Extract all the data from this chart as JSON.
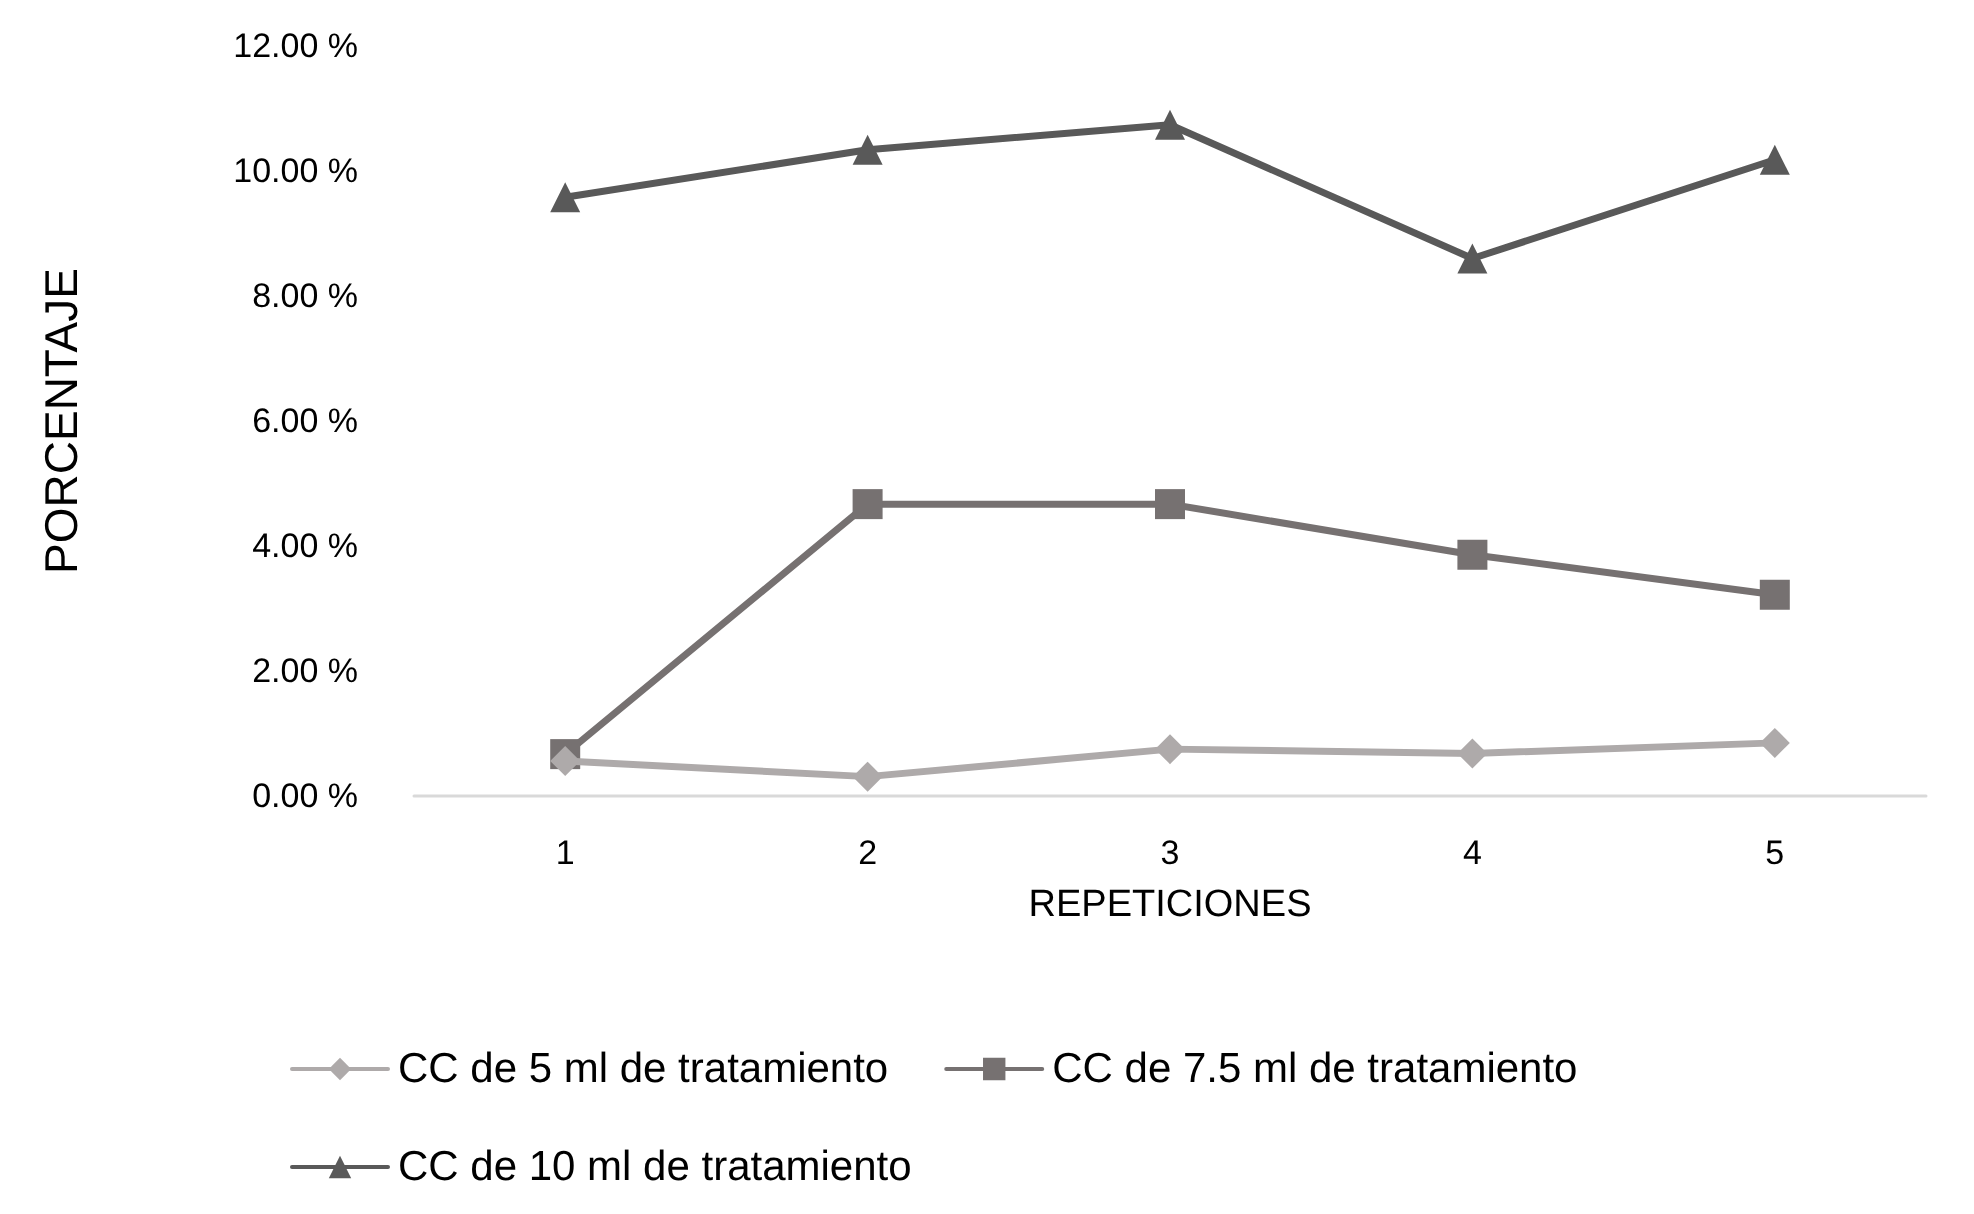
{
  "chart_data": {
    "type": "line",
    "xlabel": "REPETICIONES",
    "ylabel": "PORCENTAJE",
    "categories": [
      "1",
      "2",
      "3",
      "4",
      "5"
    ],
    "series": [
      {
        "name": "CC de 5 ml de tratamiento",
        "color": "#aeaaaa",
        "marker": "diamond",
        "values": [
          0.56,
          0.31,
          0.75,
          0.68,
          0.85
        ]
      },
      {
        "name": "CC de 7.5 ml de tratamiento",
        "color": "#767171",
        "marker": "square",
        "values": [
          0.67,
          4.67,
          4.67,
          3.86,
          3.22
        ]
      },
      {
        "name": "CC de 10 ml de tratamiento",
        "color": "#595959",
        "marker": "triangle",
        "values": [
          9.58,
          10.34,
          10.74,
          8.6,
          10.18
        ]
      }
    ],
    "ylim": [
      0,
      12
    ],
    "yticks": [
      {
        "value": 0,
        "label": "0.00 %"
      },
      {
        "value": 2,
        "label": "2.00 %"
      },
      {
        "value": 4,
        "label": "4.00 %"
      },
      {
        "value": 6,
        "label": "6.00 %"
      },
      {
        "value": 8,
        "label": "8.00 %"
      },
      {
        "value": 10,
        "label": "10.00 %"
      },
      {
        "value": 12,
        "label": "12.00 %"
      }
    ],
    "grid": false,
    "legend": "bottom"
  }
}
